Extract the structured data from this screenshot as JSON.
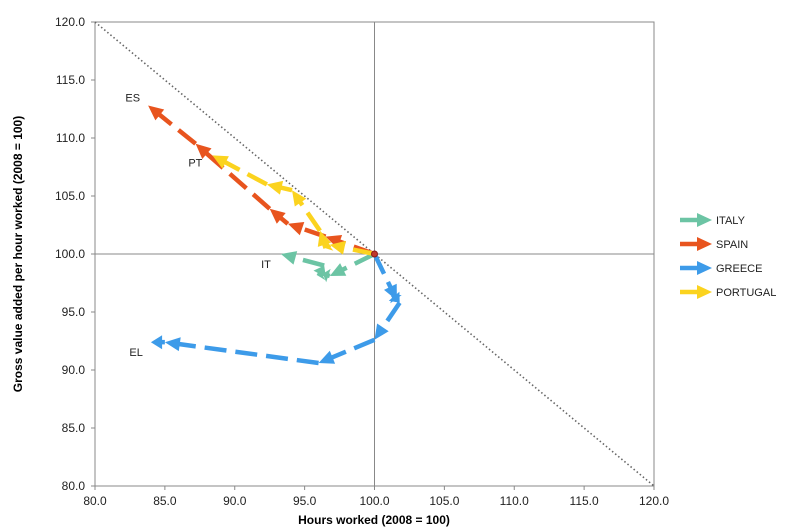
{
  "chart_data": {
    "type": "line",
    "title": "",
    "xlabel": "Hours worked (2008 = 100)",
    "ylabel": "Gross value added per hour worked (2008 = 100)",
    "xlim": [
      80,
      120
    ],
    "ylim": [
      80,
      120
    ],
    "x_ticks": [
      "80.0",
      "85.0",
      "90.0",
      "95.0",
      "100.0",
      "105.0",
      "110.0",
      "115.0",
      "120.0"
    ],
    "y_ticks": [
      "80.0",
      "85.0",
      "90.0",
      "95.0",
      "100.0",
      "105.0",
      "110.0",
      "115.0",
      "120.0"
    ],
    "reference_lines": [
      {
        "name": "iso-output diagonal",
        "style": "dotted",
        "points": [
          [
            80,
            120
          ],
          [
            120,
            80
          ]
        ]
      },
      {
        "name": "vertical 100",
        "points": [
          [
            100,
            80
          ],
          [
            100,
            120
          ]
        ]
      },
      {
        "name": "horizontal 100",
        "points": [
          [
            80,
            100
          ],
          [
            120,
            100
          ]
        ]
      }
    ],
    "series": [
      {
        "name": "ITALY",
        "label": "IT",
        "color": "#6cc4a4",
        "points": [
          [
            100.0,
            100.0
          ],
          [
            96.8,
            98.1
          ],
          [
            96.3,
            98.3
          ],
          [
            96.0,
            98.1
          ],
          [
            96.4,
            99.0
          ],
          [
            93.3,
            100.0
          ]
        ]
      },
      {
        "name": "SPAIN",
        "label": "ES",
        "color": "#e8541e",
        "points": [
          [
            100.0,
            100.0
          ],
          [
            96.5,
            101.5
          ],
          [
            93.8,
            102.6
          ],
          [
            92.5,
            103.9
          ],
          [
            87.2,
            109.5
          ],
          [
            83.8,
            112.8
          ]
        ]
      },
      {
        "name": "GREECE",
        "label": "EL",
        "color": "#3d9be9",
        "points": [
          [
            100.0,
            100.0
          ],
          [
            101.6,
            96.0
          ],
          [
            101.3,
            96.5
          ],
          [
            101.8,
            95.8
          ],
          [
            100.0,
            92.6
          ],
          [
            96.0,
            90.6
          ],
          [
            85.0,
            92.4
          ],
          [
            84.0,
            92.4
          ]
        ]
      },
      {
        "name": "PORTUGAL",
        "label": "PT",
        "color": "#fbd31f",
        "points": [
          [
            100.0,
            100.0
          ],
          [
            96.8,
            100.8
          ],
          [
            96.5,
            100.5
          ],
          [
            96.1,
            102.0
          ],
          [
            94.1,
            105.5
          ],
          [
            92.3,
            106.0
          ],
          [
            88.4,
            108.5
          ]
        ]
      }
    ],
    "legend": {
      "position": "right",
      "entries": [
        "ITALY",
        "SPAIN",
        "GREECE",
        "PORTUGAL"
      ]
    }
  }
}
